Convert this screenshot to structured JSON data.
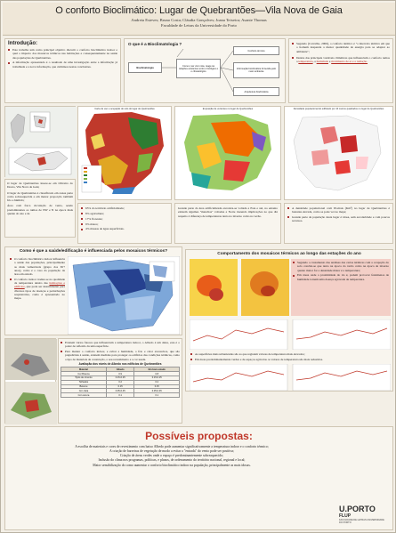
{
  "header": {
    "title": "O conforto Bioclimático: Lugar de Quebrantões—Vila Nova de Gaia",
    "authors": "Andreia Esteves; Bruno Costa; Cláudia Gonçalves; Joana Teixeira; Asante Thomas",
    "institution": "Faculdade de Letras da Universidade do Porto"
  },
  "intro": {
    "heading": "Introdução:",
    "p1": "Este trabalho tem como principal objetivo discutir o conforto bioclimático indoor e qual o impacto dos mosaicos térmicos nas habitações e consequentemente na saúde das populações de Quebrantões.",
    "p2": "A informação apresentada é o resultado de uma investigação entre a informação já trabalhada e a nova informação, que culminou nestas conclusões."
  },
  "bioclim": {
    "question": "O que é a Bioclimatologia ?",
    "center": "Bioclimatologia",
    "node_def": "Como o ser vivo nota, reage às relações existentes entre o biológico e o climatológico",
    "node_comfort": "Conforto térmico",
    "node_info": "Informação bioclimática fornecida pelo meio ambiente",
    "node_arch": "Arquitetura bioclimática"
  },
  "quotes": {
    "q1": "Segundo (Carvalho, 2006), o conforto térmico é \"o intervalo térmico em que o homem despende a menor quantidade de energia para se adaptar ao ambiente\";",
    "q2_a": "Dentre das principais variáveis climáticas que influenciam o conforto temos a ",
    "q2_b": "temperatura",
    "q2_c": ", a ",
    "q2_d": "humidade",
    "q2_e": " e ",
    "q2_f": "movimento de ar e a radiação."
  },
  "maps": {
    "m1_caption": "Carta de uso e ocupação do solo do lugar de Quebrantões",
    "m2_caption": "Exposição de vertentes no lugar de Quebrantões",
    "m3_caption": "Densidade populacional do edificado por 10 metros quadrados no lugar de Quebrantões"
  },
  "location": {
    "p1": "O lugar de Quebrantões insere-se em Oliveira do Douro, Vila Nova de Gaia;",
    "p2": "O lugar de Quebrantões é classificado em zonas parte como sobreaquecida e em menor proporção também frio e húmido;",
    "p3": "Área com fraca circulação de vento, sendo predominantes os rumos de NW e N na época mais quente do ano e de"
  },
  "landuse": {
    "l1": "65% do território artificializado;",
    "l2": "8% agricultura;",
    "l3": "17% florestas;",
    "l4": "9% matos;",
    "l5": "4% massas de água superficiais."
  },
  "slope": {
    "text": "Grande parte da área artificializada encontra-se voltada a Este e sul, no entanto existem algumas \"manchas\" voltadas a Norte trazendo implicações no que diz respeito à diferença de temperaturas tanto no inverno como no verão."
  },
  "density": {
    "p1": "A densidade populacional com 65-mais (Km²) no lugar de Quebrantões é bastante elevada, como se pode ver no mapa;",
    "p2": "Grande parte da população desta lugar é idosa, sem escolaridade e com poucos recursos."
  },
  "health": {
    "heading": "Como é que a saúde/edificação é influenciada pelos mosaicos térmicos?",
    "p1": "O conforto bioclimático indoor influencia a saúde das populações, principalmente as mais vulneráveis (grupo dos 65+ anos), como é o caso da população da área em estudo.",
    "p2_a": "O conforto indoor traduz-se na qualidade da temperatura dentro das ",
    "p2_b": "habitações e edifícios",
    "p2_c": ", que pode ser determinante para diversos tipos de doenças e perturbações respiratórias, como é apresentado no mapa."
  },
  "seasons": {
    "heading": "Comportamento dos mosaicos térmicos ao longo das estações do ano",
    "b1": "Segundo o cruzamento das análises das cartas térmicas com a ocupação do solo concluí-se que tanto na época do verão como na época de inverno quanto maior for a densidade maior é a temperatura;",
    "b2": "Em áreas onde a proximidade do rio é, podem provocar fenómenos de humidade tornam uma doença agravada de temperatura.",
    "b3": "As superfícies mais urbanizadas são as que registam valores de temperatura mais elevados;",
    "b4": "Em áreas predominantemente verdes e de espaços agrícolas os valores de temperatura são mais reduzidos."
  },
  "factors": {
    "p1": "Existem vários fatores que influenciam a temperatura indoor, o Albedo é um deles, este é o poder de reflexão da uma superfície.",
    "p2": "Para manter o conforto indoor, e evitar a humidade, o frio e calor excessivos, que são prejudiciais à saúde, existem medidas para proteger os edifícios das condições térmicas, como o tipo de materiais de construção, o seu revestimento e a cor usada."
  },
  "albedo": {
    "title": "Avaliação dos níveis de Albedo nos edifícios de Quebrantões",
    "headers": [
      "Material",
      "Albedo",
      "Em bom estado"
    ],
    "rows": [
      [
        "Cor Branca",
        "0.9",
        "0.8"
      ],
      [
        "Tijolo de cimento",
        "0.15-0.25",
        "0.15-0.25"
      ],
      [
        "Telhados",
        "0.2",
        "0.2"
      ],
      [
        "Betume",
        "0.15",
        "0.15"
      ],
      [
        "Cor clara",
        "0.35-0.45",
        "0.35-0.45"
      ],
      [
        "Cor escura",
        "0.1",
        "0.1"
      ]
    ]
  },
  "proposals": {
    "heading": "Possíveis propostas:",
    "items": [
      "A escolha de materiais e cores de revestimento com baixo Albedo pode aumentar significativamente a temperatura indoor e o conforto térmico;",
      "A criação de barreiras de vegetação de modo a evitar a \"entrada\" do vento pode ser positiva;",
      "Criação de áreas verdes onde o espaço é predominantemente sobreaquecido;",
      "Inclusão do clima nos programas, políticas, e planos, de ordenamento do território nacional, regional e local;",
      "Maior sensibilização do como aumentar o conforto bioclimático indoor na população, principalmente as mais idosas."
    ]
  },
  "logo": {
    "mark": "U.PORTO",
    "sub": "FLUP",
    "faculty": "FACULDADE DE LETRAS UNIVERSIDADE DO PORTO"
  }
}
